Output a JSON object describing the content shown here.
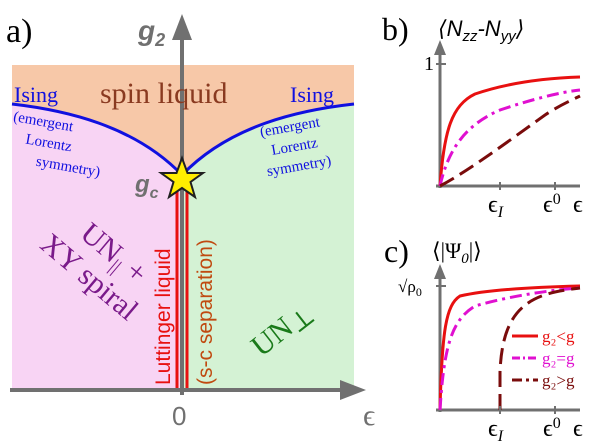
{
  "panel_a": {
    "label": "a)",
    "y_axis": "g",
    "y_axis_sub": "2",
    "x_axis": "ϵ",
    "x_zero": "0",
    "critical_point": "g",
    "critical_point_sub": "c",
    "region_top": "spin liquid",
    "ising_left": "Ising",
    "ising_right": "Ising",
    "emergent_left": [
      "(emergent",
      "Lorentz",
      "symmetry)"
    ],
    "emergent_right": [
      "(emergent",
      "Lorentz",
      "symmetry)"
    ],
    "region_left_line1": "UN",
    "region_left_sub": "||",
    "region_left_plus": "+",
    "region_left_line2": "XY spiral",
    "region_right": "UN",
    "region_right_sub": "⊥",
    "luttinger": "Luttinger liquid",
    "separation": "(s-c separation)",
    "colors": {
      "spin_liquid_region": "#f7c8a8",
      "left_region": "#f8d4f4",
      "right_region": "#d4f2d4",
      "boundary": "#1010e0",
      "luttinger_line": "#e81010",
      "star": "#ffee00",
      "axis": "#707070"
    }
  },
  "panel_b": {
    "label": "b)",
    "title": "⟨N",
    "title_sub1": "zz",
    "title_mid": "-N",
    "title_sub2": "yy",
    "title_end": "⟩",
    "y_tick": "1",
    "x_ticks": [
      {
        "main": "ϵ",
        "sub": "I"
      },
      {
        "main": "ϵ",
        "sub": "0"
      }
    ],
    "x_axis": "ϵ"
  },
  "panel_c": {
    "label": "c)",
    "title": "⟨|Ψ",
    "title_sub": "0",
    "title_end": "|⟩",
    "y_tick": "√ρ",
    "y_tick_sub": "0",
    "x_ticks": [
      {
        "main": "ϵ",
        "sub": "I"
      },
      {
        "main": "ϵ",
        "sub": "0"
      }
    ],
    "x_axis": "ϵ",
    "legend": [
      {
        "label": "g₂<g",
        "color": "#e81010",
        "style": "solid"
      },
      {
        "label": "g₂=g",
        "color": "#e010d0",
        "style": "dashdot"
      },
      {
        "label": "g₂>g",
        "color": "#7a0c0c",
        "style": "dashdotted-long"
      }
    ]
  }
}
